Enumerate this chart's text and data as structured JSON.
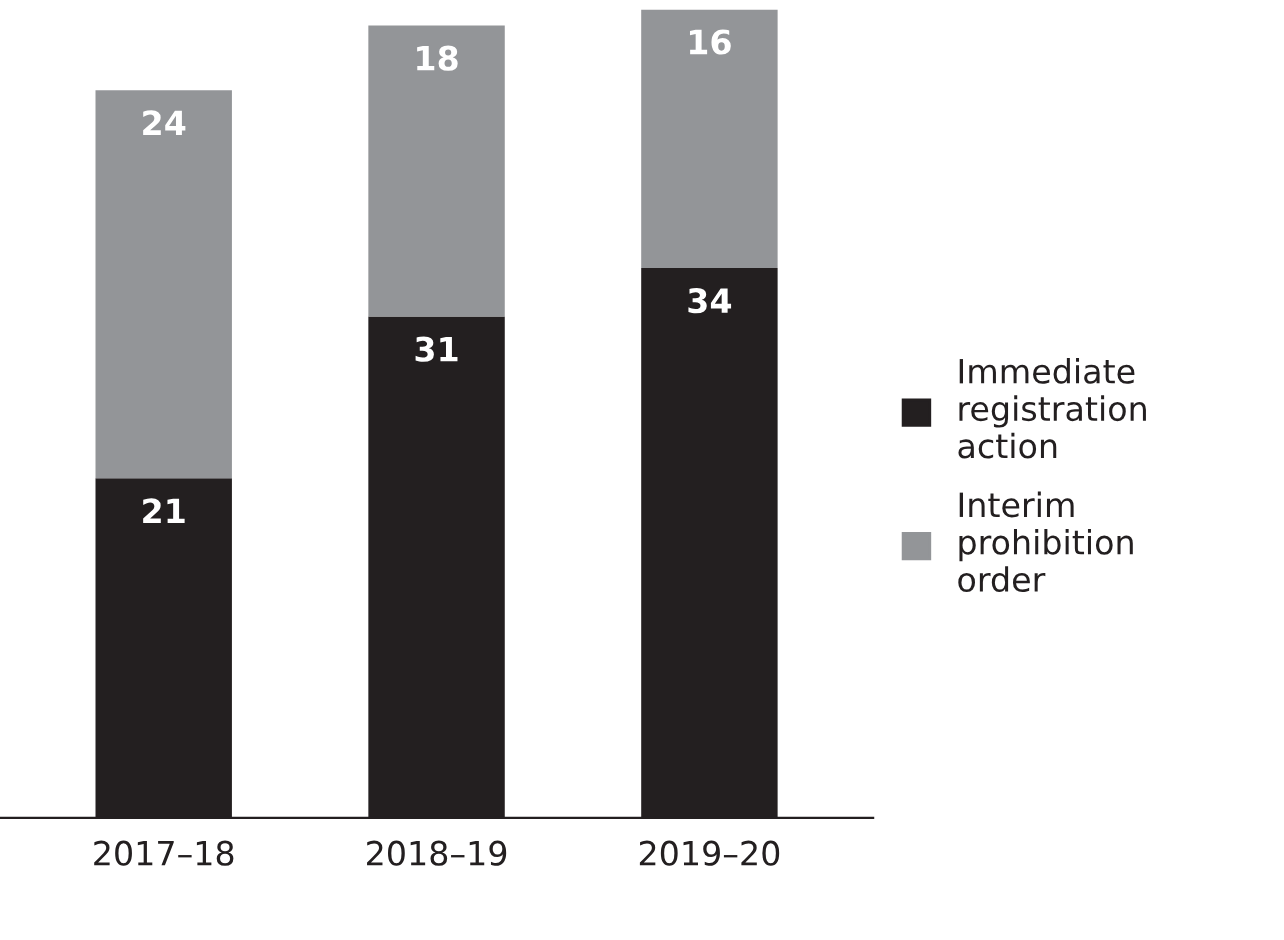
{
  "chart_data": {
    "type": "bar",
    "stacked": true,
    "data_labels": true,
    "legend": "right",
    "categories": [
      "2017–18",
      "2018–19",
      "2019–20"
    ],
    "series": [
      {
        "name": "Immediate registration action",
        "color": "#231f20",
        "values": [
          21,
          31,
          34
        ]
      },
      {
        "name": "Interim prohibition order",
        "color": "#939598",
        "values": [
          24,
          18,
          16
        ]
      }
    ]
  }
}
